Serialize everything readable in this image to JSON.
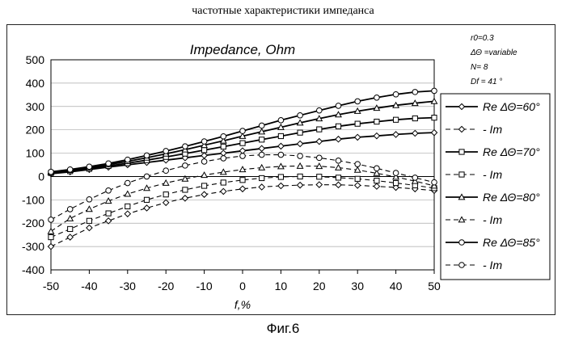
{
  "header": "частотные характеристики импеданса",
  "figure_label": "Фиг.6",
  "annotations": {
    "r0": "r0=0.3",
    "dtheta": "ΔΘ =variable",
    "n": "N= 8",
    "df": "Df = 41 °"
  },
  "chart_data": {
    "type": "line",
    "title": "Impedance, Ohm",
    "xlabel": "f,%",
    "ylabel": "",
    "xlim": [
      -50,
      50
    ],
    "ylim": [
      -400,
      500
    ],
    "xticks": [
      -50,
      -40,
      -30,
      -20,
      -10,
      0,
      10,
      20,
      30,
      40,
      50
    ],
    "yticks": [
      -400,
      -300,
      -200,
      -100,
      0,
      100,
      200,
      300,
      400,
      500
    ],
    "grid": "horizontal",
    "legend_position": "right",
    "x": [
      -50,
      -45,
      -40,
      -35,
      -30,
      -25,
      -20,
      -15,
      -10,
      -5,
      0,
      5,
      10,
      15,
      20,
      25,
      30,
      35,
      40,
      45,
      50
    ],
    "series": [
      {
        "name": "Re ΔΘ=60°",
        "marker": "diamond",
        "dash": false,
        "values": [
          12,
          20,
          30,
          40,
          50,
          60,
          70,
          80,
          90,
          100,
          110,
          120,
          130,
          140,
          150,
          160,
          168,
          174,
          180,
          185,
          188
        ]
      },
      {
        "name": "- Im",
        "marker": "diamond",
        "dash": true,
        "values": [
          -300,
          -260,
          -220,
          -190,
          -160,
          -135,
          -112,
          -93,
          -77,
          -64,
          -53,
          -45,
          -40,
          -37,
          -35,
          -36,
          -38,
          -42,
          -47,
          -53,
          -60
        ]
      },
      {
        "name": "Re ΔΘ=70°",
        "marker": "square",
        "dash": false,
        "values": [
          15,
          23,
          33,
          45,
          57,
          70,
          84,
          98,
          113,
          128,
          143,
          158,
          173,
          188,
          202,
          215,
          226,
          235,
          243,
          249,
          252
        ]
      },
      {
        "name": "- Im",
        "marker": "square",
        "dash": true,
        "values": [
          -260,
          -225,
          -190,
          -158,
          -128,
          -100,
          -77,
          -57,
          -40,
          -26,
          -15,
          -7,
          -2,
          0,
          -1,
          -5,
          -10,
          -18,
          -28,
          -38,
          -50
        ]
      },
      {
        "name": "Re ΔΘ=80°",
        "marker": "triangle",
        "dash": false,
        "values": [
          18,
          27,
          38,
          51,
          65,
          80,
          97,
          115,
          134,
          153,
          173,
          192,
          211,
          230,
          248,
          265,
          280,
          293,
          305,
          314,
          322
        ]
      },
      {
        "name": "- Im",
        "marker": "triangle",
        "dash": true,
        "values": [
          -235,
          -180,
          -140,
          -105,
          -75,
          -50,
          -28,
          -10,
          6,
          19,
          30,
          38,
          43,
          45,
          44,
          38,
          28,
          14,
          -2,
          -20,
          -40
        ]
      },
      {
        "name": "Re ΔΘ=85°",
        "marker": "circle",
        "dash": false,
        "values": [
          20,
          30,
          42,
          56,
          72,
          90,
          109,
          129,
          150,
          172,
          195,
          218,
          241,
          262,
          283,
          303,
          322,
          338,
          352,
          362,
          367
        ]
      },
      {
        "name": "- Im",
        "marker": "circle",
        "dash": true,
        "values": [
          -185,
          -140,
          -98,
          -60,
          -28,
          0,
          25,
          47,
          64,
          78,
          88,
          93,
          93,
          88,
          80,
          68,
          53,
          35,
          15,
          -5,
          -25
        ]
      }
    ]
  }
}
